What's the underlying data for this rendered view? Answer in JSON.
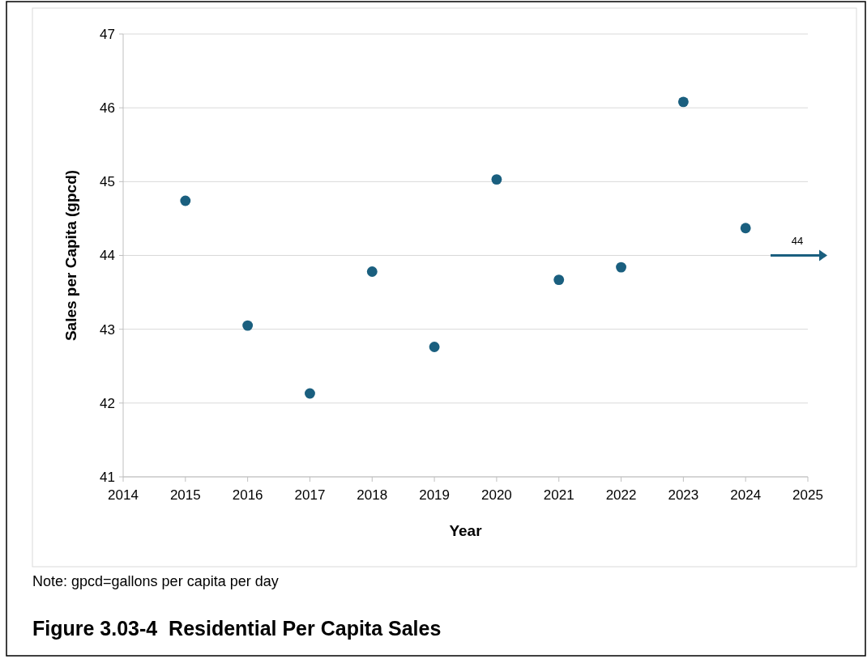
{
  "chart_data": {
    "type": "scatter",
    "title": "Figure 3.03-4  Residential Per Capita Sales",
    "xlabel": "Year",
    "ylabel": "Sales per Capita (gpcd)",
    "x": [
      2015,
      2016,
      2017,
      2018,
      2019,
      2020,
      2021,
      2022,
      2023,
      2024
    ],
    "values": [
      44.74,
      43.05,
      42.13,
      43.78,
      42.76,
      45.03,
      43.67,
      43.84,
      46.08,
      44.37
    ],
    "color": "#1a5f7f",
    "marker": "circle",
    "xlim": [
      2014,
      2025
    ],
    "xticks": [
      2014,
      2015,
      2016,
      2017,
      2018,
      2019,
      2020,
      2021,
      2022,
      2023,
      2024,
      2025
    ],
    "ylim": [
      41,
      47
    ],
    "yticks": [
      41,
      42,
      43,
      44,
      45,
      46,
      47
    ],
    "grid": "y",
    "ref_lines": [
      {
        "axis": "y",
        "value": 44,
        "label": "44",
        "color": "#1a5f7f"
      }
    ],
    "annotations": [
      "Note: gpcd=gallons per capita per day"
    ]
  }
}
